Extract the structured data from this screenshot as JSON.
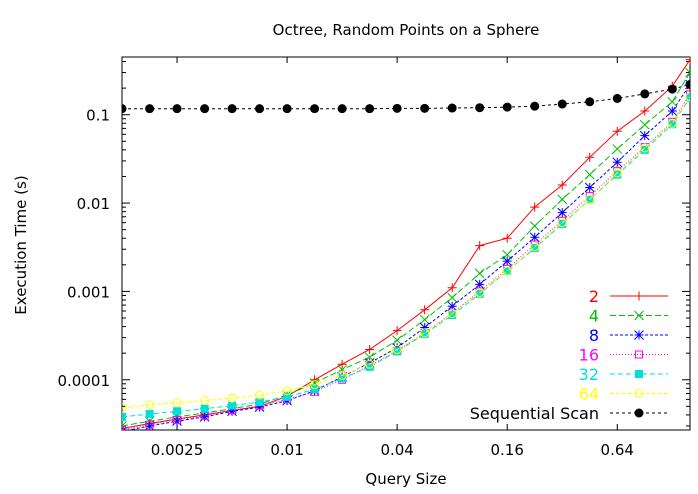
{
  "chart_data": {
    "type": "line",
    "title": "Octree, Random Points on a Sphere",
    "xlabel": "Query Size",
    "ylabel": "Execution Time (s)",
    "xscale": "log2",
    "yscale": "log10",
    "xlim": [
      0.00125,
      1.6
    ],
    "ylim": [
      2.7e-05,
      0.45
    ],
    "grid": false,
    "legend_position": "bottom-right",
    "x_ticks": [
      {
        "value": 0.0025,
        "label": "0.0025"
      },
      {
        "value": 0.01,
        "label": "0.01"
      },
      {
        "value": 0.04,
        "label": "0.04"
      },
      {
        "value": 0.16,
        "label": "0.16"
      },
      {
        "value": 0.64,
        "label": "0.64"
      }
    ],
    "y_ticks": [
      {
        "value": 0.1,
        "label": "0.1"
      },
      {
        "value": 0.01,
        "label": "0.01"
      },
      {
        "value": 0.001,
        "label": "0.001"
      },
      {
        "value": 0.0001,
        "label": "0.0001"
      }
    ],
    "x": [
      0.00125,
      0.00177,
      0.0025,
      0.00354,
      0.005,
      0.00707,
      0.01,
      0.01414,
      0.02,
      0.02828,
      0.04,
      0.05657,
      0.08,
      0.11314,
      0.16,
      0.22627,
      0.32,
      0.45255,
      0.64,
      0.9051,
      1.28,
      1.6
    ],
    "series": [
      {
        "name": "2",
        "color": "#ff0000",
        "marker": "plus",
        "dash": "",
        "values": [
          2.8e-05,
          3.2e-05,
          3.6e-05,
          4e-05,
          4.5e-05,
          5e-05,
          6.5e-05,
          0.0001,
          0.00015,
          0.00022,
          0.00036,
          0.00062,
          0.0011,
          0.0033,
          0.004,
          0.009,
          0.016,
          0.033,
          0.065,
          0.11,
          0.21,
          0.42
        ]
      },
      {
        "name": "4",
        "color": "#00c000",
        "marker": "x",
        "dash": "6,3",
        "values": [
          3e-05,
          3.4e-05,
          3.8e-05,
          4.2e-05,
          4.7e-05,
          5.3e-05,
          6.7e-05,
          9.2e-05,
          0.00013,
          0.00018,
          0.00028,
          0.00048,
          0.00085,
          0.0016,
          0.0026,
          0.0055,
          0.011,
          0.021,
          0.041,
          0.077,
          0.14,
          0.3
        ]
      },
      {
        "name": "8",
        "color": "#0000ff",
        "marker": "star",
        "dash": "3,2",
        "values": [
          2.6e-05,
          3e-05,
          3.4e-05,
          3.8e-05,
          4.4e-05,
          4.9e-05,
          5.8e-05,
          7.5e-05,
          0.000108,
          0.000155,
          0.00023,
          0.00039,
          0.00068,
          0.0012,
          0.0022,
          0.0041,
          0.0078,
          0.015,
          0.029,
          0.058,
          0.11,
          0.22
        ]
      },
      {
        "name": "16",
        "color": "#ff00ff",
        "marker": "square",
        "dash": "1,2",
        "values": [
          2.7e-05,
          3.1e-05,
          3.5e-05,
          3.9e-05,
          4.5e-05,
          5.1e-05,
          6e-05,
          7.3e-05,
          0.0001,
          0.000145,
          0.00021,
          0.00034,
          0.00057,
          0.001,
          0.0018,
          0.0034,
          0.0063,
          0.012,
          0.023,
          0.043,
          0.083,
          0.17
        ]
      },
      {
        "name": "32",
        "color": "#00dddd",
        "marker": "filled-square",
        "dash": "5,3",
        "values": [
          3.8e-05,
          4.1e-05,
          4.4e-05,
          4.7e-05,
          5.1e-05,
          5.6e-05,
          6.4e-05,
          7.8e-05,
          0.000104,
          0.00014,
          0.00021,
          0.00033,
          0.00054,
          0.00094,
          0.0017,
          0.0031,
          0.0058,
          0.011,
          0.021,
          0.04,
          0.078,
          0.155
        ]
      },
      {
        "name": "64",
        "color": "#ffff00",
        "marker": "circle",
        "dash": "4,2",
        "values": [
          4.8e-05,
          5.2e-05,
          5.5e-05,
          5.8e-05,
          6.2e-05,
          6.7e-05,
          7.5e-05,
          8.8e-05,
          0.000112,
          0.00015,
          0.00022,
          0.00034,
          0.00056,
          0.00097,
          0.0017,
          0.0032,
          0.006,
          0.011,
          0.022,
          0.042,
          0.08,
          0.16
        ]
      },
      {
        "name": "Sequential Scan",
        "color": "#000000",
        "marker": "filled-circle",
        "dash": "3,3",
        "values": [
          0.117,
          0.117,
          0.117,
          0.117,
          0.117,
          0.117,
          0.117,
          0.117,
          0.117,
          0.117,
          0.118,
          0.118,
          0.119,
          0.12,
          0.122,
          0.125,
          0.132,
          0.14,
          0.153,
          0.172,
          0.195,
          0.22
        ]
      }
    ]
  }
}
